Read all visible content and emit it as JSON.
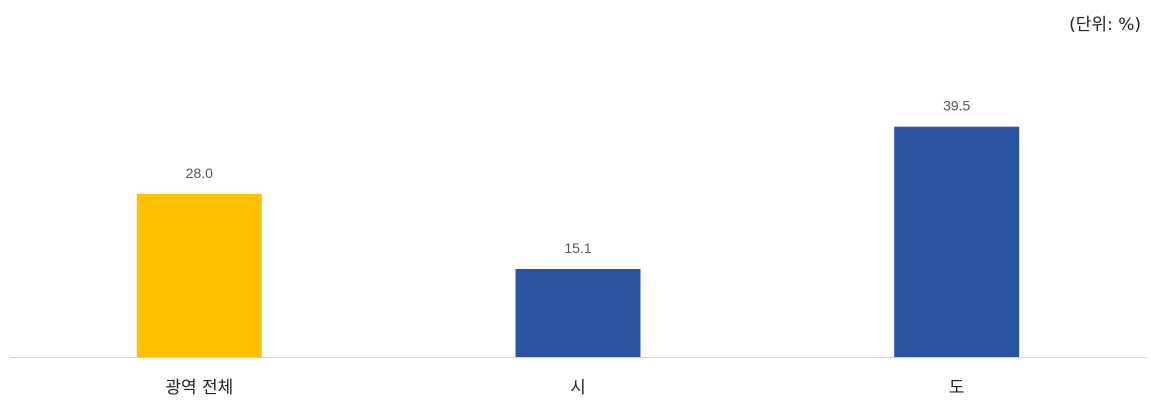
{
  "unit_label": "(단위: %)",
  "colors": {
    "highlight": "#FFC000",
    "bar": "#2B54A0",
    "axis": "#D0D0D0"
  },
  "chart_data": {
    "type": "bar",
    "categories": [
      "광역 전체",
      "시",
      "도"
    ],
    "values": [
      28.0,
      15.1,
      39.5
    ],
    "value_labels": [
      "28.0",
      "15.1",
      "39.5"
    ],
    "highlight_index": 0,
    "ylim": [
      0,
      40
    ],
    "grid": false,
    "legend": "none"
  }
}
